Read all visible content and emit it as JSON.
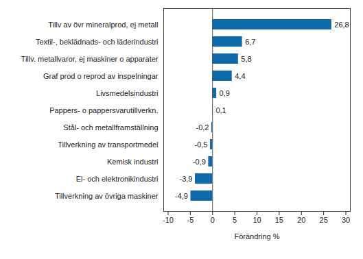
{
  "chart_data": {
    "type": "bar",
    "orientation": "horizontal",
    "categories": [
      "Tillv av övr mineralprod, ej metall",
      "Textil-, beklädnads- och läderindustri",
      "Tillv. metallvaror, ej maskiner o apparater",
      "Graf prod o reprod av inspelningar",
      "Livsmedelsindustri",
      "Pappers- o pappersvarutillverkn.",
      "Stål- och metallframställning",
      "Tillverkning av transportmedel",
      "Kemisk industri",
      "El- och elektronikindustri",
      "Tillverkning av övriga maskiner"
    ],
    "values": [
      26.8,
      6.7,
      5.8,
      4.4,
      0.9,
      0.1,
      -0.2,
      -0.5,
      -0.9,
      -3.9,
      -4.9
    ],
    "value_labels": [
      "26,8",
      "6,7",
      "5,8",
      "4,4",
      "0,9",
      "0,1",
      "-0,2",
      "-0,5",
      "-0,9",
      "-3,9",
      "-4,9"
    ],
    "data_labels": true,
    "color": "#0f6aab",
    "x_label": "Förändring %",
    "xlim": [
      -11,
      31
    ],
    "xticks": [
      -10,
      -5,
      0,
      5,
      10,
      15,
      20,
      25,
      30
    ],
    "grid": false
  }
}
